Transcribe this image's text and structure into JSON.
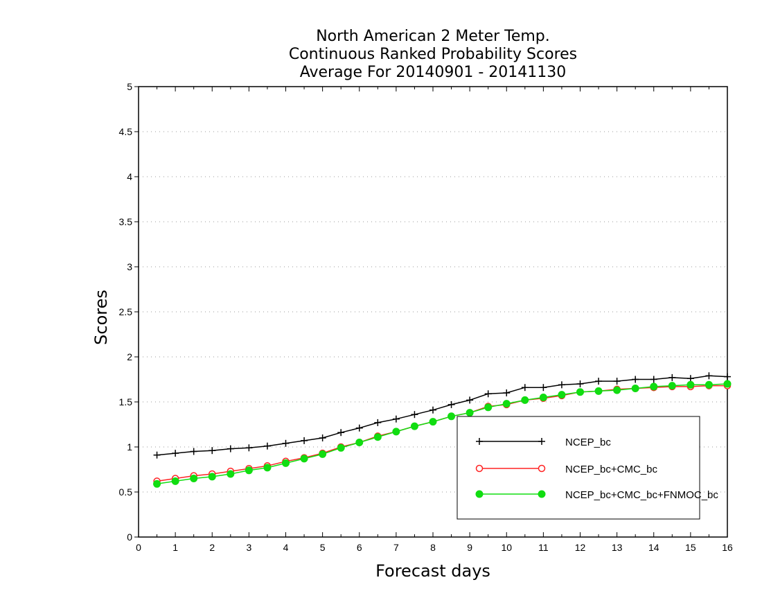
{
  "chart_data": {
    "type": "line",
    "title_lines": [
      "North American 2 Meter Temp.",
      "Continuous Ranked Probability Scores",
      "Average For 20140901 - 20141130"
    ],
    "xlabel": "Forecast days",
    "ylabel": "Scores",
    "xlim": [
      0,
      16
    ],
    "ylim": [
      0,
      5
    ],
    "xticks": [
      0,
      1,
      2,
      3,
      4,
      5,
      6,
      7,
      8,
      9,
      10,
      11,
      12,
      13,
      14,
      15,
      16
    ],
    "xtick_labels": [
      "0",
      "1",
      "2",
      "3",
      "4",
      "5",
      "6",
      "7",
      "8",
      "9",
      "10",
      "11",
      "12",
      "13",
      "14",
      "15",
      "16"
    ],
    "yticks": [
      0,
      0.5,
      1,
      1.5,
      2,
      2.5,
      3,
      3.5,
      4,
      4.5,
      5
    ],
    "ytick_labels": [
      "0",
      "0.5",
      "1",
      "1.5",
      "2",
      "2.5",
      "3",
      "3.5",
      "4",
      "4.5",
      "5"
    ],
    "grid": "horizontal dotted",
    "legend_position": "bottom-right",
    "x": [
      0.5,
      1,
      1.5,
      2,
      2.5,
      3,
      3.5,
      4,
      4.5,
      5,
      5.5,
      6,
      6.5,
      7,
      7.5,
      8,
      8.5,
      9,
      9.5,
      10,
      10.5,
      11,
      11.5,
      12,
      12.5,
      13,
      13.5,
      14,
      14.5,
      15,
      15.5,
      16
    ],
    "series": [
      {
        "name": "NCEP_bc",
        "color": "#000000",
        "marker": "plus",
        "values": [
          0.91,
          0.93,
          0.95,
          0.96,
          0.98,
          0.99,
          1.01,
          1.04,
          1.07,
          1.1,
          1.16,
          1.21,
          1.27,
          1.31,
          1.36,
          1.41,
          1.47,
          1.52,
          1.59,
          1.6,
          1.66,
          1.66,
          1.69,
          1.7,
          1.73,
          1.73,
          1.75,
          1.75,
          1.77,
          1.76,
          1.79,
          1.78
        ]
      },
      {
        "name": "NCEP_bc+CMC_bc",
        "color": "#ff2222",
        "marker": "open-circle",
        "values": [
          0.62,
          0.65,
          0.68,
          0.7,
          0.73,
          0.76,
          0.79,
          0.84,
          0.88,
          0.93,
          1.0,
          1.05,
          1.12,
          1.17,
          1.23,
          1.28,
          1.34,
          1.38,
          1.45,
          1.47,
          1.52,
          1.54,
          1.57,
          1.61,
          1.62,
          1.64,
          1.65,
          1.66,
          1.67,
          1.67,
          1.68,
          1.68
        ]
      },
      {
        "name": "NCEP_bc+CMC_bc+FNMOC_bc",
        "color": "#11dd11",
        "marker": "filled-circle",
        "values": [
          0.59,
          0.62,
          0.65,
          0.67,
          0.7,
          0.74,
          0.77,
          0.82,
          0.87,
          0.92,
          0.99,
          1.05,
          1.11,
          1.17,
          1.23,
          1.28,
          1.34,
          1.38,
          1.44,
          1.48,
          1.52,
          1.55,
          1.58,
          1.61,
          1.62,
          1.63,
          1.65,
          1.67,
          1.68,
          1.69,
          1.69,
          1.7
        ]
      }
    ]
  }
}
